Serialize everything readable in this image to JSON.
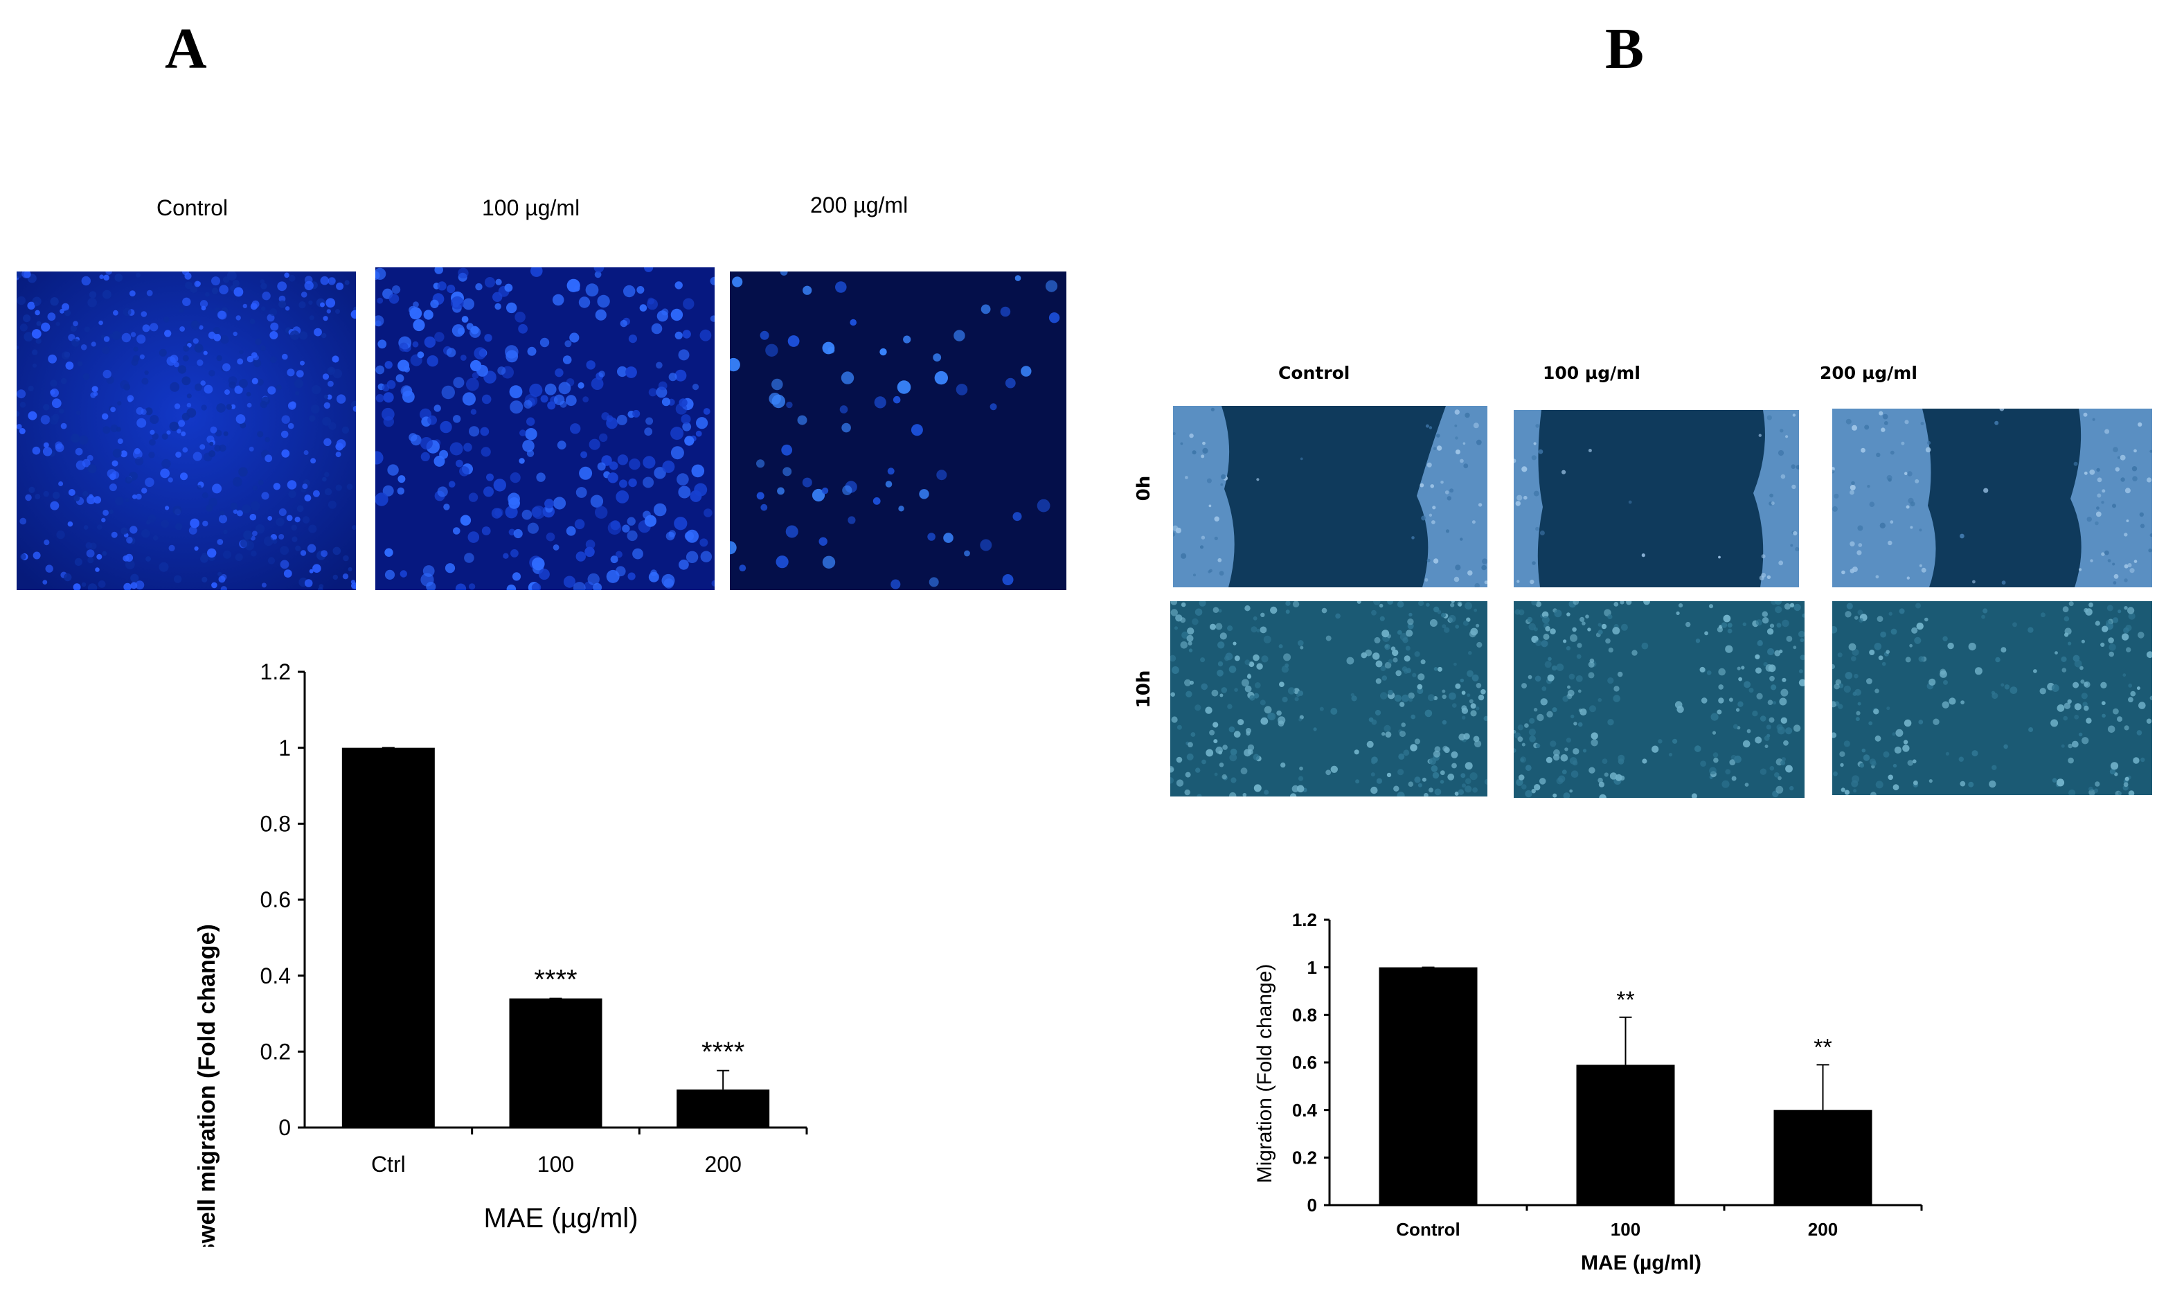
{
  "panels": {
    "A": {
      "letter": "A",
      "image_labels": [
        "Control",
        "100 µg/ml",
        "200 µg/ml"
      ]
    },
    "B": {
      "letter": "B",
      "column_labels": [
        "Control",
        "100 µg/ml",
        "200 µg/ml"
      ],
      "row_labels": [
        "0h",
        "10h"
      ]
    }
  },
  "chart_data": [
    {
      "type": "bar",
      "panel": "A",
      "categories": [
        "Ctrl",
        "100",
        "200"
      ],
      "values": [
        1.0,
        0.34,
        0.1
      ],
      "errors": [
        0.0,
        0.0,
        0.05
      ],
      "annotations": [
        "",
        "****",
        "****"
      ],
      "xlabel": "MAE (µg/ml)",
      "ylabel": "Transwell migration  (Fold change)",
      "ylim": [
        0,
        1.2
      ],
      "yticks": [
        "0",
        "0.2",
        "0.4",
        "0.6",
        "0.8",
        "1",
        "1.2"
      ],
      "bar_color": "#000000"
    },
    {
      "type": "bar",
      "panel": "B",
      "categories": [
        "Control",
        "100",
        "200"
      ],
      "values": [
        1.0,
        0.59,
        0.4
      ],
      "errors": [
        0.0,
        0.2,
        0.19
      ],
      "annotations": [
        "",
        "**",
        "**"
      ],
      "xlabel": "MAE (µg/ml)",
      "ylabel": "Migration (Fold change)",
      "ylim": [
        0,
        1.2
      ],
      "yticks": [
        "0",
        "0.2",
        "0.4",
        "0.6",
        "0.8",
        "1",
        "1.2"
      ],
      "bar_color": "#000000"
    }
  ]
}
